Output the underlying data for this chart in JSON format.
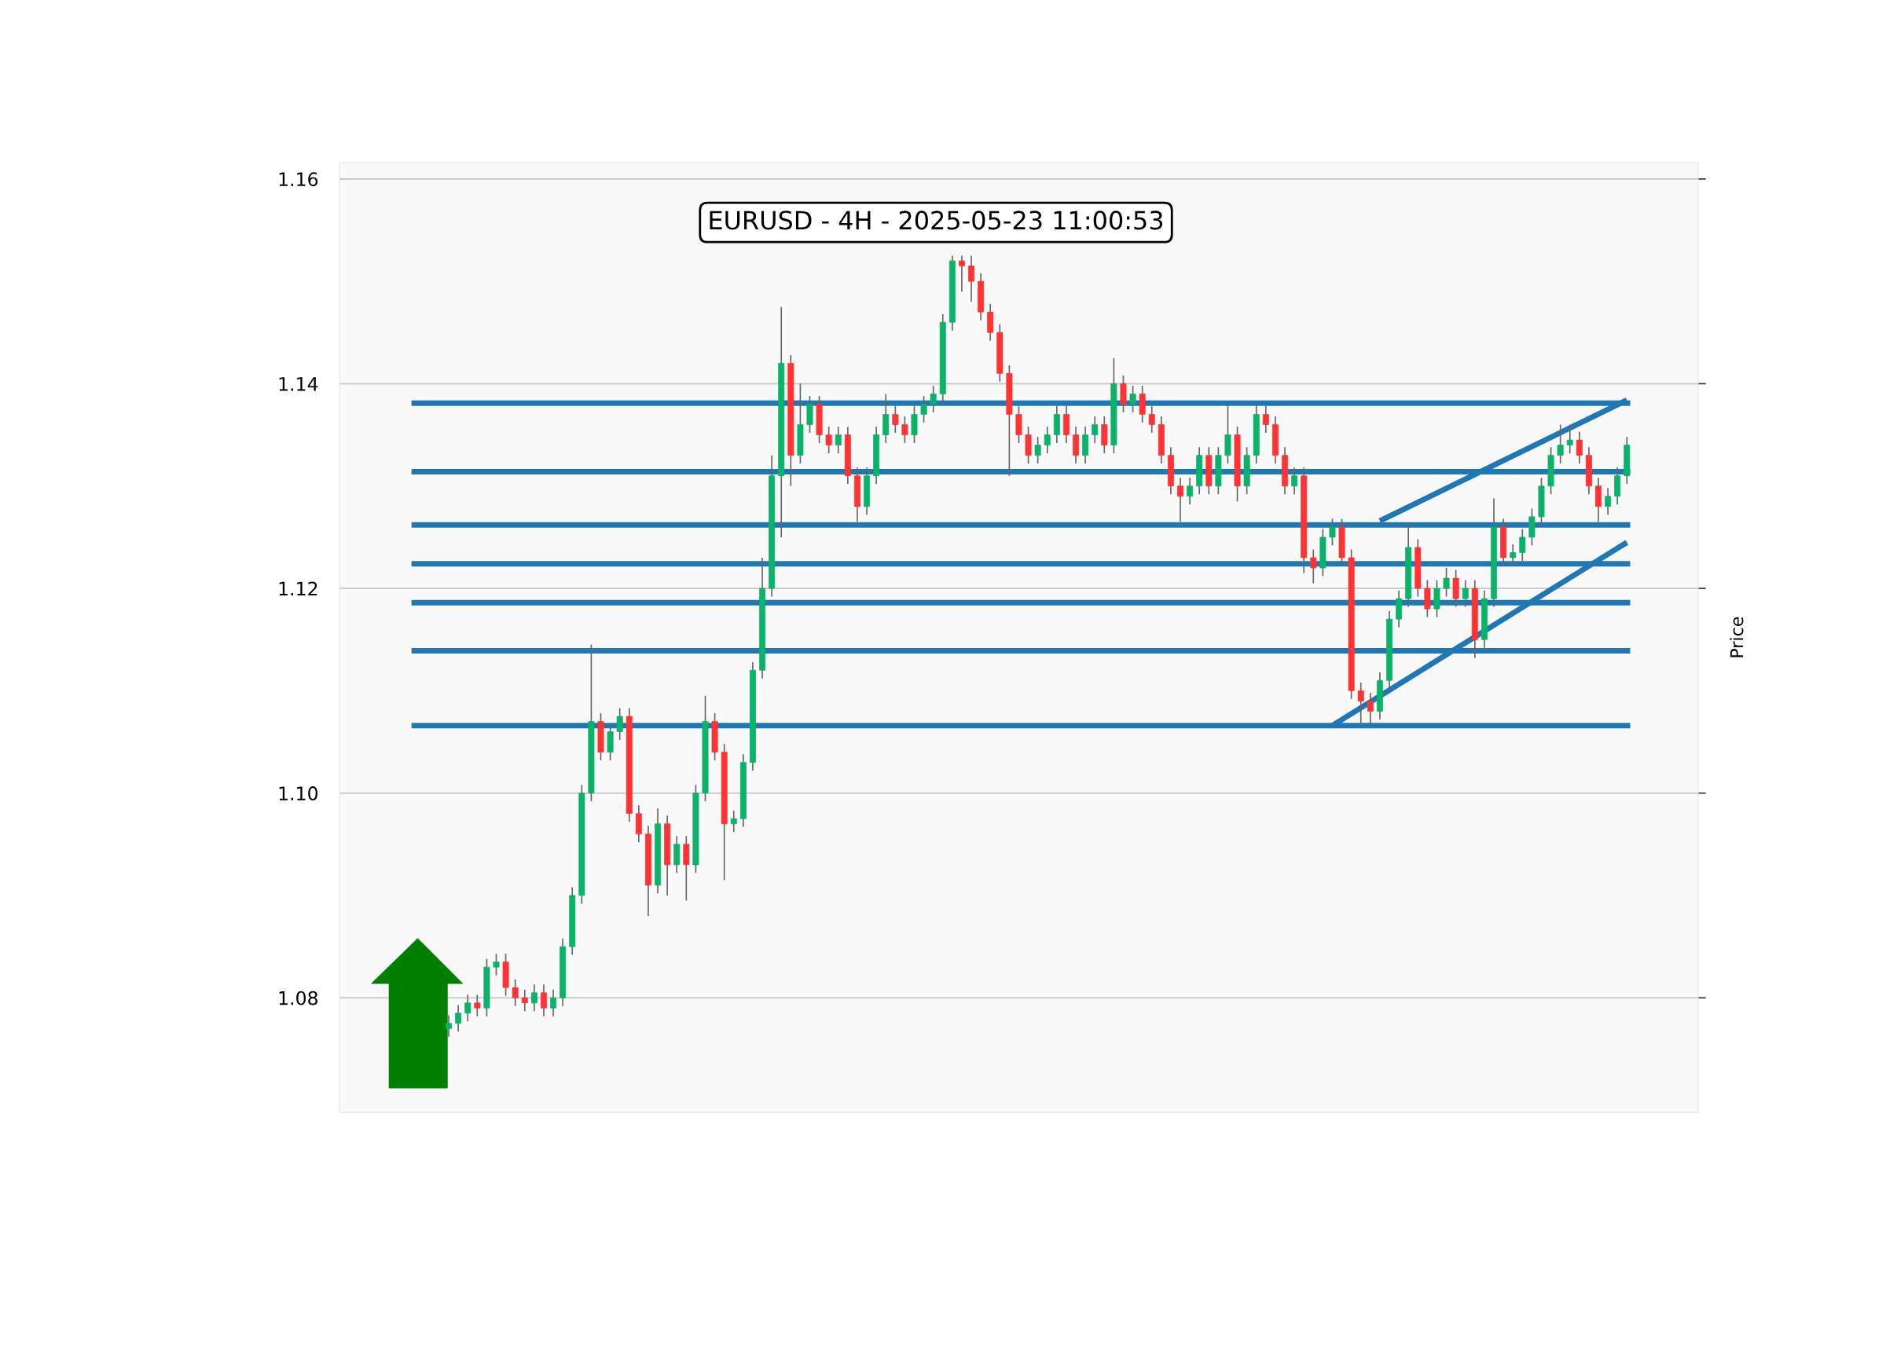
{
  "chart_data": {
    "type": "candlestick",
    "title": "EURUSD - 4H - 2025-05-23 11:00:53",
    "ylabel": "Price",
    "categories": [
      null,
      null,
      null,
      null,
      null,
      null,
      null,
      null,
      null,
      null,
      null,
      null,
      null,
      null,
      null,
      null,
      null,
      null,
      null,
      null,
      null,
      null,
      null,
      null,
      null,
      null,
      null,
      null,
      null,
      null,
      null,
      null,
      null,
      null,
      null,
      null,
      null,
      null,
      null,
      null,
      null,
      null,
      null,
      null,
      null,
      null,
      null,
      null,
      null,
      null,
      null,
      null,
      null,
      null,
      null,
      null,
      null,
      null,
      null,
      null,
      null,
      null,
      null,
      null,
      null,
      null,
      null,
      null,
      null,
      null,
      null,
      null,
      null,
      null,
      null,
      null,
      null,
      null,
      null,
      null,
      null,
      null,
      null,
      null,
      null,
      null,
      null,
      null,
      null,
      null,
      null,
      null,
      null,
      null,
      null,
      null,
      null,
      null,
      null,
      null,
      null,
      null,
      null,
      null,
      null,
      null,
      null,
      null,
      null,
      null,
      null,
      null,
      null,
      null,
      null,
      null,
      null,
      null,
      null,
      null,
      null,
      null,
      null,
      null,
      null,
      null,
      null,
      null,
      null,
      null,
      null,
      null,
      null,
      null,
      null,
      null,
      null,
      null,
      null,
      null,
      null,
      null,
      null
    ],
    "ohlc": [
      null,
      null,
      null,
      null,
      null,
      null,
      null,
      null,
      null,
      null,
      null,
      [
        1.077,
        1.0783,
        1.0762,
        1.0775
      ],
      [
        1.0775,
        1.0793,
        1.0767,
        1.0785
      ],
      [
        1.0785,
        1.0803,
        1.0777,
        1.0795
      ],
      [
        1.0795,
        1.0803,
        1.0782,
        1.079
      ],
      [
        1.079,
        1.0838,
        1.0782,
        1.083
      ],
      [
        1.083,
        1.0843,
        1.0822,
        1.0835
      ],
      [
        1.0835,
        1.0843,
        1.0802,
        1.081
      ],
      [
        1.081,
        1.0818,
        1.0792,
        1.08
      ],
      [
        1.08,
        1.0808,
        1.0787,
        1.0795
      ],
      [
        1.0795,
        1.0813,
        1.0787,
        1.0805
      ],
      [
        1.0805,
        1.0813,
        1.0782,
        1.079
      ],
      [
        1.079,
        1.0808,
        1.0782,
        1.08
      ],
      [
        1.08,
        1.0858,
        1.0792,
        1.085
      ],
      [
        1.085,
        1.0908,
        1.0842,
        1.09
      ],
      [
        1.09,
        1.1008,
        1.0892,
        1.1
      ],
      [
        1.1,
        1.1145,
        1.0992,
        1.107
      ],
      [
        1.107,
        1.1078,
        1.1032,
        1.104
      ],
      [
        1.104,
        1.1068,
        1.1032,
        1.106
      ],
      [
        1.106,
        1.1083,
        1.1052,
        1.1075
      ],
      [
        1.1075,
        1.1083,
        1.0972,
        1.098
      ],
      [
        1.098,
        1.0988,
        1.0952,
        1.096
      ],
      [
        1.096,
        1.0968,
        1.088,
        1.091
      ],
      [
        1.091,
        1.0985,
        1.0902,
        1.097
      ],
      [
        1.097,
        1.0978,
        1.09,
        1.093
      ],
      [
        1.093,
        1.0958,
        1.0922,
        1.095
      ],
      [
        1.095,
        1.0958,
        1.0895,
        1.093
      ],
      [
        1.093,
        1.1008,
        1.0922,
        1.1
      ],
      [
        1.1,
        1.1095,
        1.0992,
        1.107
      ],
      [
        1.107,
        1.1078,
        1.1032,
        1.104
      ],
      [
        1.104,
        1.1048,
        1.0915,
        1.097
      ],
      [
        1.097,
        1.0983,
        1.0962,
        1.0975
      ],
      [
        1.0975,
        1.1038,
        1.0967,
        1.103
      ],
      [
        1.103,
        1.1128,
        1.1022,
        1.112
      ],
      [
        1.112,
        1.123,
        1.1112,
        1.12
      ],
      [
        1.12,
        1.133,
        1.1192,
        1.131
      ],
      [
        1.131,
        1.1475,
        1.125,
        1.142
      ],
      [
        1.142,
        1.1428,
        1.13,
        1.133
      ],
      [
        1.133,
        1.14,
        1.1322,
        1.136
      ],
      [
        1.136,
        1.1388,
        1.1352,
        1.138
      ],
      [
        1.138,
        1.1388,
        1.1342,
        1.135
      ],
      [
        1.135,
        1.1358,
        1.1332,
        1.134
      ],
      [
        1.134,
        1.1358,
        1.1332,
        1.135
      ],
      [
        1.135,
        1.1358,
        1.1302,
        1.131
      ],
      [
        1.131,
        1.1318,
        1.1265,
        1.128
      ],
      [
        1.128,
        1.1318,
        1.1272,
        1.131
      ],
      [
        1.131,
        1.1358,
        1.1302,
        1.135
      ],
      [
        1.135,
        1.139,
        1.1342,
        1.137
      ],
      [
        1.137,
        1.1378,
        1.1352,
        1.136
      ],
      [
        1.136,
        1.1368,
        1.1342,
        1.135
      ],
      [
        1.135,
        1.1378,
        1.1342,
        1.137
      ],
      [
        1.137,
        1.1388,
        1.1362,
        1.138
      ],
      [
        1.138,
        1.1398,
        1.1372,
        1.139
      ],
      [
        1.139,
        1.1468,
        1.1382,
        1.146
      ],
      [
        1.146,
        1.1525,
        1.1452,
        1.152
      ],
      [
        1.152,
        1.1525,
        1.149,
        1.1515
      ],
      [
        1.1515,
        1.1525,
        1.148,
        1.15
      ],
      [
        1.15,
        1.1508,
        1.1462,
        1.147
      ],
      [
        1.147,
        1.1478,
        1.1442,
        1.145
      ],
      [
        1.145,
        1.1458,
        1.1402,
        1.141
      ],
      [
        1.141,
        1.1418,
        1.131,
        1.137
      ],
      [
        1.137,
        1.1378,
        1.1342,
        1.135
      ],
      [
        1.135,
        1.1358,
        1.1322,
        1.133
      ],
      [
        1.133,
        1.1348,
        1.1322,
        1.134
      ],
      [
        1.134,
        1.1358,
        1.1332,
        1.135
      ],
      [
        1.135,
        1.1378,
        1.1342,
        1.137
      ],
      [
        1.137,
        1.1378,
        1.1342,
        1.135
      ],
      [
        1.135,
        1.1358,
        1.1322,
        1.133
      ],
      [
        1.133,
        1.1358,
        1.1322,
        1.135
      ],
      [
        1.135,
        1.1368,
        1.1342,
        1.136
      ],
      [
        1.136,
        1.1368,
        1.1332,
        1.134
      ],
      [
        1.134,
        1.1425,
        1.1332,
        1.14
      ],
      [
        1.14,
        1.1408,
        1.1372,
        1.138
      ],
      [
        1.138,
        1.1398,
        1.1372,
        1.139
      ],
      [
        1.139,
        1.1398,
        1.1362,
        1.137
      ],
      [
        1.137,
        1.1378,
        1.1352,
        1.136
      ],
      [
        1.136,
        1.1368,
        1.1322,
        1.133
      ],
      [
        1.133,
        1.1338,
        1.1292,
        1.13
      ],
      [
        1.13,
        1.1308,
        1.1265,
        1.129
      ],
      [
        1.129,
        1.1308,
        1.1282,
        1.13
      ],
      [
        1.13,
        1.1338,
        1.1292,
        1.133
      ],
      [
        1.133,
        1.1338,
        1.1292,
        1.13
      ],
      [
        1.13,
        1.1338,
        1.1292,
        1.133
      ],
      [
        1.133,
        1.138,
        1.1322,
        1.135
      ],
      [
        1.135,
        1.1358,
        1.1285,
        1.13
      ],
      [
        1.13,
        1.1338,
        1.1292,
        1.133
      ],
      [
        1.133,
        1.138,
        1.1322,
        1.137
      ],
      [
        1.137,
        1.1378,
        1.1352,
        1.136
      ],
      [
        1.136,
        1.1368,
        1.1322,
        1.133
      ],
      [
        1.133,
        1.1338,
        1.1292,
        1.13
      ],
      [
        1.13,
        1.1318,
        1.1292,
        1.131
      ],
      [
        1.131,
        1.1318,
        1.1215,
        1.123
      ],
      [
        1.123,
        1.1238,
        1.1205,
        1.122
      ],
      [
        1.122,
        1.1258,
        1.1212,
        1.125
      ],
      [
        1.125,
        1.1268,
        1.1242,
        1.126
      ],
      [
        1.126,
        1.1268,
        1.1222,
        1.123
      ],
      [
        1.123,
        1.1238,
        1.1092,
        1.11
      ],
      [
        1.11,
        1.1108,
        1.1068,
        1.109
      ],
      [
        1.109,
        1.1098,
        1.1068,
        1.108
      ],
      [
        1.108,
        1.1118,
        1.1072,
        1.111
      ],
      [
        1.111,
        1.1178,
        1.1102,
        1.117
      ],
      [
        1.117,
        1.1198,
        1.1162,
        1.119
      ],
      [
        1.119,
        1.1262,
        1.1182,
        1.124
      ],
      [
        1.124,
        1.1248,
        1.1192,
        1.12
      ],
      [
        1.12,
        1.1208,
        1.1172,
        1.118
      ],
      [
        1.118,
        1.1208,
        1.1172,
        1.12
      ],
      [
        1.12,
        1.122,
        1.1192,
        1.121
      ],
      [
        1.121,
        1.1218,
        1.1182,
        1.119
      ],
      [
        1.119,
        1.1208,
        1.1182,
        1.12
      ],
      [
        1.12,
        1.1208,
        1.1132,
        1.115
      ],
      [
        1.115,
        1.1198,
        1.1142,
        1.119
      ],
      [
        1.119,
        1.1288,
        1.1182,
        1.126
      ],
      [
        1.126,
        1.1268,
        1.1222,
        1.123
      ],
      [
        1.123,
        1.1243,
        1.1222,
        1.1235
      ],
      [
        1.1235,
        1.1258,
        1.1227,
        1.125
      ],
      [
        1.125,
        1.1278,
        1.1242,
        1.127
      ],
      [
        1.127,
        1.1308,
        1.1262,
        1.13
      ],
      [
        1.13,
        1.1338,
        1.1292,
        1.133
      ],
      [
        1.133,
        1.136,
        1.1322,
        1.134
      ],
      [
        1.134,
        1.136,
        1.1332,
        1.1345
      ],
      [
        1.1345,
        1.1353,
        1.1322,
        1.133
      ],
      [
        1.133,
        1.1338,
        1.1292,
        1.13
      ],
      [
        1.13,
        1.1308,
        1.1265,
        1.128
      ],
      [
        1.128,
        1.1298,
        1.1272,
        1.129
      ],
      [
        1.129,
        1.1318,
        1.1282,
        1.131
      ],
      [
        1.131,
        1.1348,
        1.1302,
        1.134
      ],
      null,
      null,
      null,
      null,
      null,
      null,
      null
    ],
    "series": [
      {
        "type": "line",
        "color": "#1f77b4",
        "values": [
          null,
          null,
          null,
          null,
          null,
          null,
          null,
          null,
          null,
          null,
          null,
          null,
          null,
          null,
          null,
          null,
          null,
          null,
          null,
          null,
          null,
          null,
          null,
          null,
          null,
          null,
          null,
          null,
          null,
          null,
          null,
          null,
          null,
          null,
          null,
          null,
          null,
          null,
          null,
          null,
          null,
          null,
          null,
          null,
          null,
          null,
          null,
          null,
          null,
          null,
          null,
          null,
          null,
          null,
          null,
          null,
          null,
          null,
          null,
          null,
          null,
          null,
          null,
          null,
          null,
          null,
          null,
          null,
          null,
          null,
          null,
          null,
          null,
          null,
          null,
          null,
          null,
          null,
          null,
          null,
          null,
          null,
          null,
          null,
          null,
          null,
          null,
          null,
          null,
          null,
          null,
          null,
          null,
          null,
          null,
          null,
          null,
          null,
          null,
          null,
          null,
          null,
          null,
          null,
          null,
          null,
          null,
          null,
          null,
          1.1266,
          null,
          null,
          null,
          null,
          null,
          null,
          null,
          null,
          null,
          null,
          null,
          null,
          null,
          null,
          null,
          null,
          null,
          null,
          null,
          null,
          null,
          null,
          null,
          null,
          null,
          1.1384,
          null,
          null,
          null,
          null,
          null,
          null,
          null
        ]
      },
      {
        "type": "line",
        "color": "#1f77b4",
        "values": [
          null,
          null,
          null,
          null,
          null,
          null,
          null,
          null,
          null,
          null,
          null,
          null,
          null,
          null,
          null,
          null,
          null,
          null,
          null,
          null,
          null,
          null,
          null,
          null,
          null,
          null,
          null,
          null,
          null,
          null,
          null,
          null,
          null,
          null,
          null,
          null,
          null,
          null,
          null,
          null,
          null,
          null,
          null,
          null,
          null,
          null,
          null,
          null,
          null,
          null,
          null,
          null,
          null,
          null,
          null,
          null,
          null,
          null,
          null,
          null,
          null,
          null,
          null,
          null,
          null,
          null,
          null,
          null,
          null,
          null,
          null,
          null,
          null,
          null,
          null,
          null,
          null,
          null,
          null,
          null,
          null,
          null,
          null,
          null,
          null,
          null,
          null,
          null,
          null,
          null,
          null,
          null,
          null,
          null,
          null,
          null,
          null,
          null,
          null,
          null,
          null,
          null,
          null,
          null,
          1.1066,
          null,
          null,
          null,
          null,
          null,
          null,
          null,
          null,
          null,
          null,
          null,
          null,
          null,
          null,
          null,
          null,
          null,
          null,
          null,
          null,
          null,
          null,
          null,
          null,
          null,
          null,
          null,
          null,
          null,
          null,
          1.1245,
          null,
          null,
          null,
          null,
          null,
          null,
          null
        ]
      }
    ],
    "ref_lines": [
      {
        "axis": "y",
        "value": 1.1381,
        "color": "#1f77b4"
      },
      {
        "axis": "y",
        "value": 1.1314,
        "color": "#1f77b4"
      },
      {
        "axis": "y",
        "value": 1.1262,
        "color": "#1f77b4"
      },
      {
        "axis": "y",
        "value": 1.1224,
        "color": "#1f77b4"
      },
      {
        "axis": "y",
        "value": 1.1186,
        "color": "#1f77b4"
      },
      {
        "axis": "y",
        "value": 1.1139,
        "color": "#1f77b4"
      },
      {
        "axis": "y",
        "value": 1.1066,
        "color": "#1f77b4"
      }
    ],
    "ylim": [
      1.0688,
      1.1616
    ],
    "yticks": [
      1.08,
      {
        "value": 1.1,
        "label": "1.10"
      },
      1.12,
      1.14,
      1.16
    ],
    "grid": "y",
    "tick_labels": "y"
  }
}
